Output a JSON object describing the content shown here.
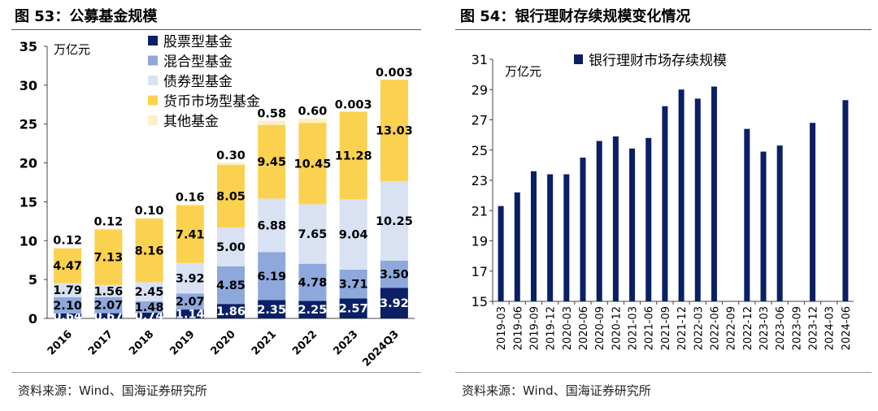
{
  "left": {
    "figure_title": "图 53：公募基金规模",
    "source": "资料来源：Wind、国海证券研究所"
  },
  "right": {
    "figure_title": "图 54：银行理财存续规模变化情况",
    "source": "资料来源：Wind、国海证券研究所"
  },
  "chart_data": [
    {
      "type": "bar",
      "stacked": true,
      "ylabel": "万亿元",
      "ylim": [
        0,
        35
      ],
      "yticks": [
        0,
        5,
        10,
        15,
        20,
        25,
        30,
        35
      ],
      "categories": [
        "2016",
        "2017",
        "2018",
        "2019",
        "2020",
        "2021",
        "2022",
        "2023",
        "2024Q3"
      ],
      "series": [
        {
          "name": "股票型基金",
          "color": "#0a1f66",
          "values": [
            0.64,
            0.67,
            0.74,
            1.14,
            1.86,
            2.35,
            2.25,
            2.57,
            3.92
          ],
          "labels": [
            "0.64",
            "0.67",
            "0.74",
            "1.14",
            "1.86",
            "2.35",
            "2.25",
            "2.57",
            "3.92"
          ]
        },
        {
          "name": "混合型基金",
          "color": "#8ea8dc",
          "values": [
            2.1,
            2.07,
            1.48,
            2.07,
            4.85,
            6.19,
            4.78,
            3.71,
            3.5
          ],
          "labels": [
            "2.10",
            "2.07",
            "1.48",
            "2.07",
            "4.85",
            "6.19",
            "4.78",
            "3.71",
            "3.50"
          ]
        },
        {
          "name": "债券型基金",
          "color": "#d9e2f3",
          "values": [
            1.79,
            1.56,
            2.45,
            3.92,
            5.0,
            6.88,
            7.65,
            9.04,
            10.25
          ],
          "labels": [
            "1.79",
            "1.56",
            "2.45",
            "3.92",
            "5.00",
            "6.88",
            "7.65",
            "9.04",
            "10.25"
          ]
        },
        {
          "name": "货币市场型基金",
          "color": "#fbd150",
          "values": [
            4.47,
            7.13,
            8.16,
            7.41,
            8.05,
            9.45,
            10.45,
            11.28,
            13.03
          ],
          "labels": [
            "4.47",
            "7.13",
            "8.16",
            "7.41",
            "8.05",
            "9.45",
            "10.45",
            "11.28",
            "13.03"
          ]
        },
        {
          "name": "其他基金",
          "color": "#fdf0c6",
          "values": [
            0.12,
            0.12,
            0.1,
            0.16,
            0.3,
            0.58,
            0.6,
            0.003,
            0.003
          ],
          "labels": [
            "0.12",
            "0.12",
            "0.10",
            "0.16",
            "0.30",
            "0.58",
            "0.60",
            "0.003",
            "0.003"
          ]
        }
      ],
      "legend_position": "top"
    },
    {
      "type": "bar",
      "ylabel": "万亿元",
      "ylim": [
        15,
        31
      ],
      "yticks": [
        15,
        17,
        19,
        21,
        23,
        25,
        27,
        29,
        31
      ],
      "categories": [
        "2019-03",
        "2019-06",
        "2019-09",
        "2019-12",
        "2020-03",
        "2020-06",
        "2020-09",
        "2020-12",
        "2021-03",
        "2021-06",
        "2021-09",
        "2021-12",
        "2022-03",
        "2022-06",
        "2022-09",
        "2022-12",
        "2023-03",
        "2023-06",
        "2023-09",
        "2023-12",
        "2024-03",
        "2024-06"
      ],
      "series": [
        {
          "name": "银行理财市场存续规模",
          "color": "#0a1f66",
          "values": [
            21.3,
            22.2,
            23.6,
            23.4,
            23.4,
            24.5,
            25.6,
            25.9,
            25.1,
            25.8,
            27.9,
            29.0,
            28.4,
            29.2,
            null,
            26.4,
            24.9,
            25.3,
            null,
            26.8,
            null,
            28.3
          ]
        }
      ],
      "legend_position": "top"
    }
  ]
}
